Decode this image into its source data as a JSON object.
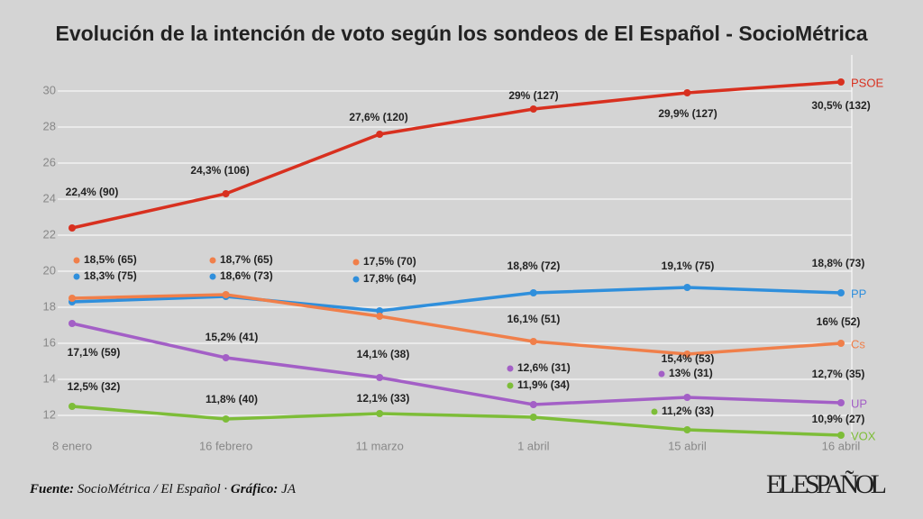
{
  "chart_data": {
    "type": "line",
    "title": "Evolución de la intención de voto según los sondeos de El Español - SocioMétrica",
    "categories": [
      "8 enero",
      "16 febrero",
      "11 marzo",
      "1 abril",
      "15 abril",
      "16 abril"
    ],
    "series": [
      {
        "name": "PSOE",
        "color": "#d8301f",
        "values": [
          22.4,
          24.3,
          27.6,
          29,
          29.9,
          30.5
        ],
        "value_labels": [
          "22,4% (90)",
          "24,3% (106)",
          "27,6%  (120)",
          "29%  (127)",
          "29,9%  (127)",
          "30,5%  (132)"
        ]
      },
      {
        "name": "PP",
        "color": "#2f8fdc",
        "values": [
          18.3,
          18.6,
          17.8,
          18.8,
          19.1,
          18.8
        ],
        "value_labels": [
          "18,3% (75)",
          "18,6%  (73)",
          "17,8% (64)",
          "18,8% (72)",
          "19,1% (75)",
          "18,8% (73)"
        ]
      },
      {
        "name": "Cs",
        "color": "#f07f4a",
        "values": [
          18.5,
          18.7,
          17.5,
          16.1,
          15.4,
          16
        ],
        "value_labels": [
          "18,5%  (65)",
          "18,7%  (65)",
          "17,5% (70)",
          "16,1% (51)",
          "15,4% (53)",
          "16% (52)"
        ]
      },
      {
        "name": "UP",
        "color": "#a35fc6",
        "values": [
          17.1,
          15.2,
          14.1,
          12.6,
          13,
          12.7
        ],
        "value_labels": [
          "17,1% (59)",
          "15,2% (41)",
          "14,1% (38)",
          "12,6% (31)",
          "13% (31)",
          "12,7% (35)"
        ]
      },
      {
        "name": "VOX",
        "color": "#7dbd38",
        "values": [
          12.5,
          11.8,
          12.1,
          11.9,
          11.2,
          10.9
        ],
        "value_labels": [
          "12,5% (32)",
          "11,8% (40)",
          "12,1% (33)",
          "11,9% (34)",
          "11,2% (33)",
          "10,9% (27)"
        ]
      }
    ],
    "ylim": [
      10.8,
      32
    ],
    "yticks": [
      12,
      14,
      16,
      18,
      20,
      22,
      24,
      26,
      28,
      30
    ],
    "grid": true,
    "footer": {
      "source_label": "Fuente:",
      "source": "SocioMétrica / El Español ·",
      "credit_label": "Gráfico:",
      "credit": "JA"
    },
    "logo": "EL ESPAÑOL"
  }
}
